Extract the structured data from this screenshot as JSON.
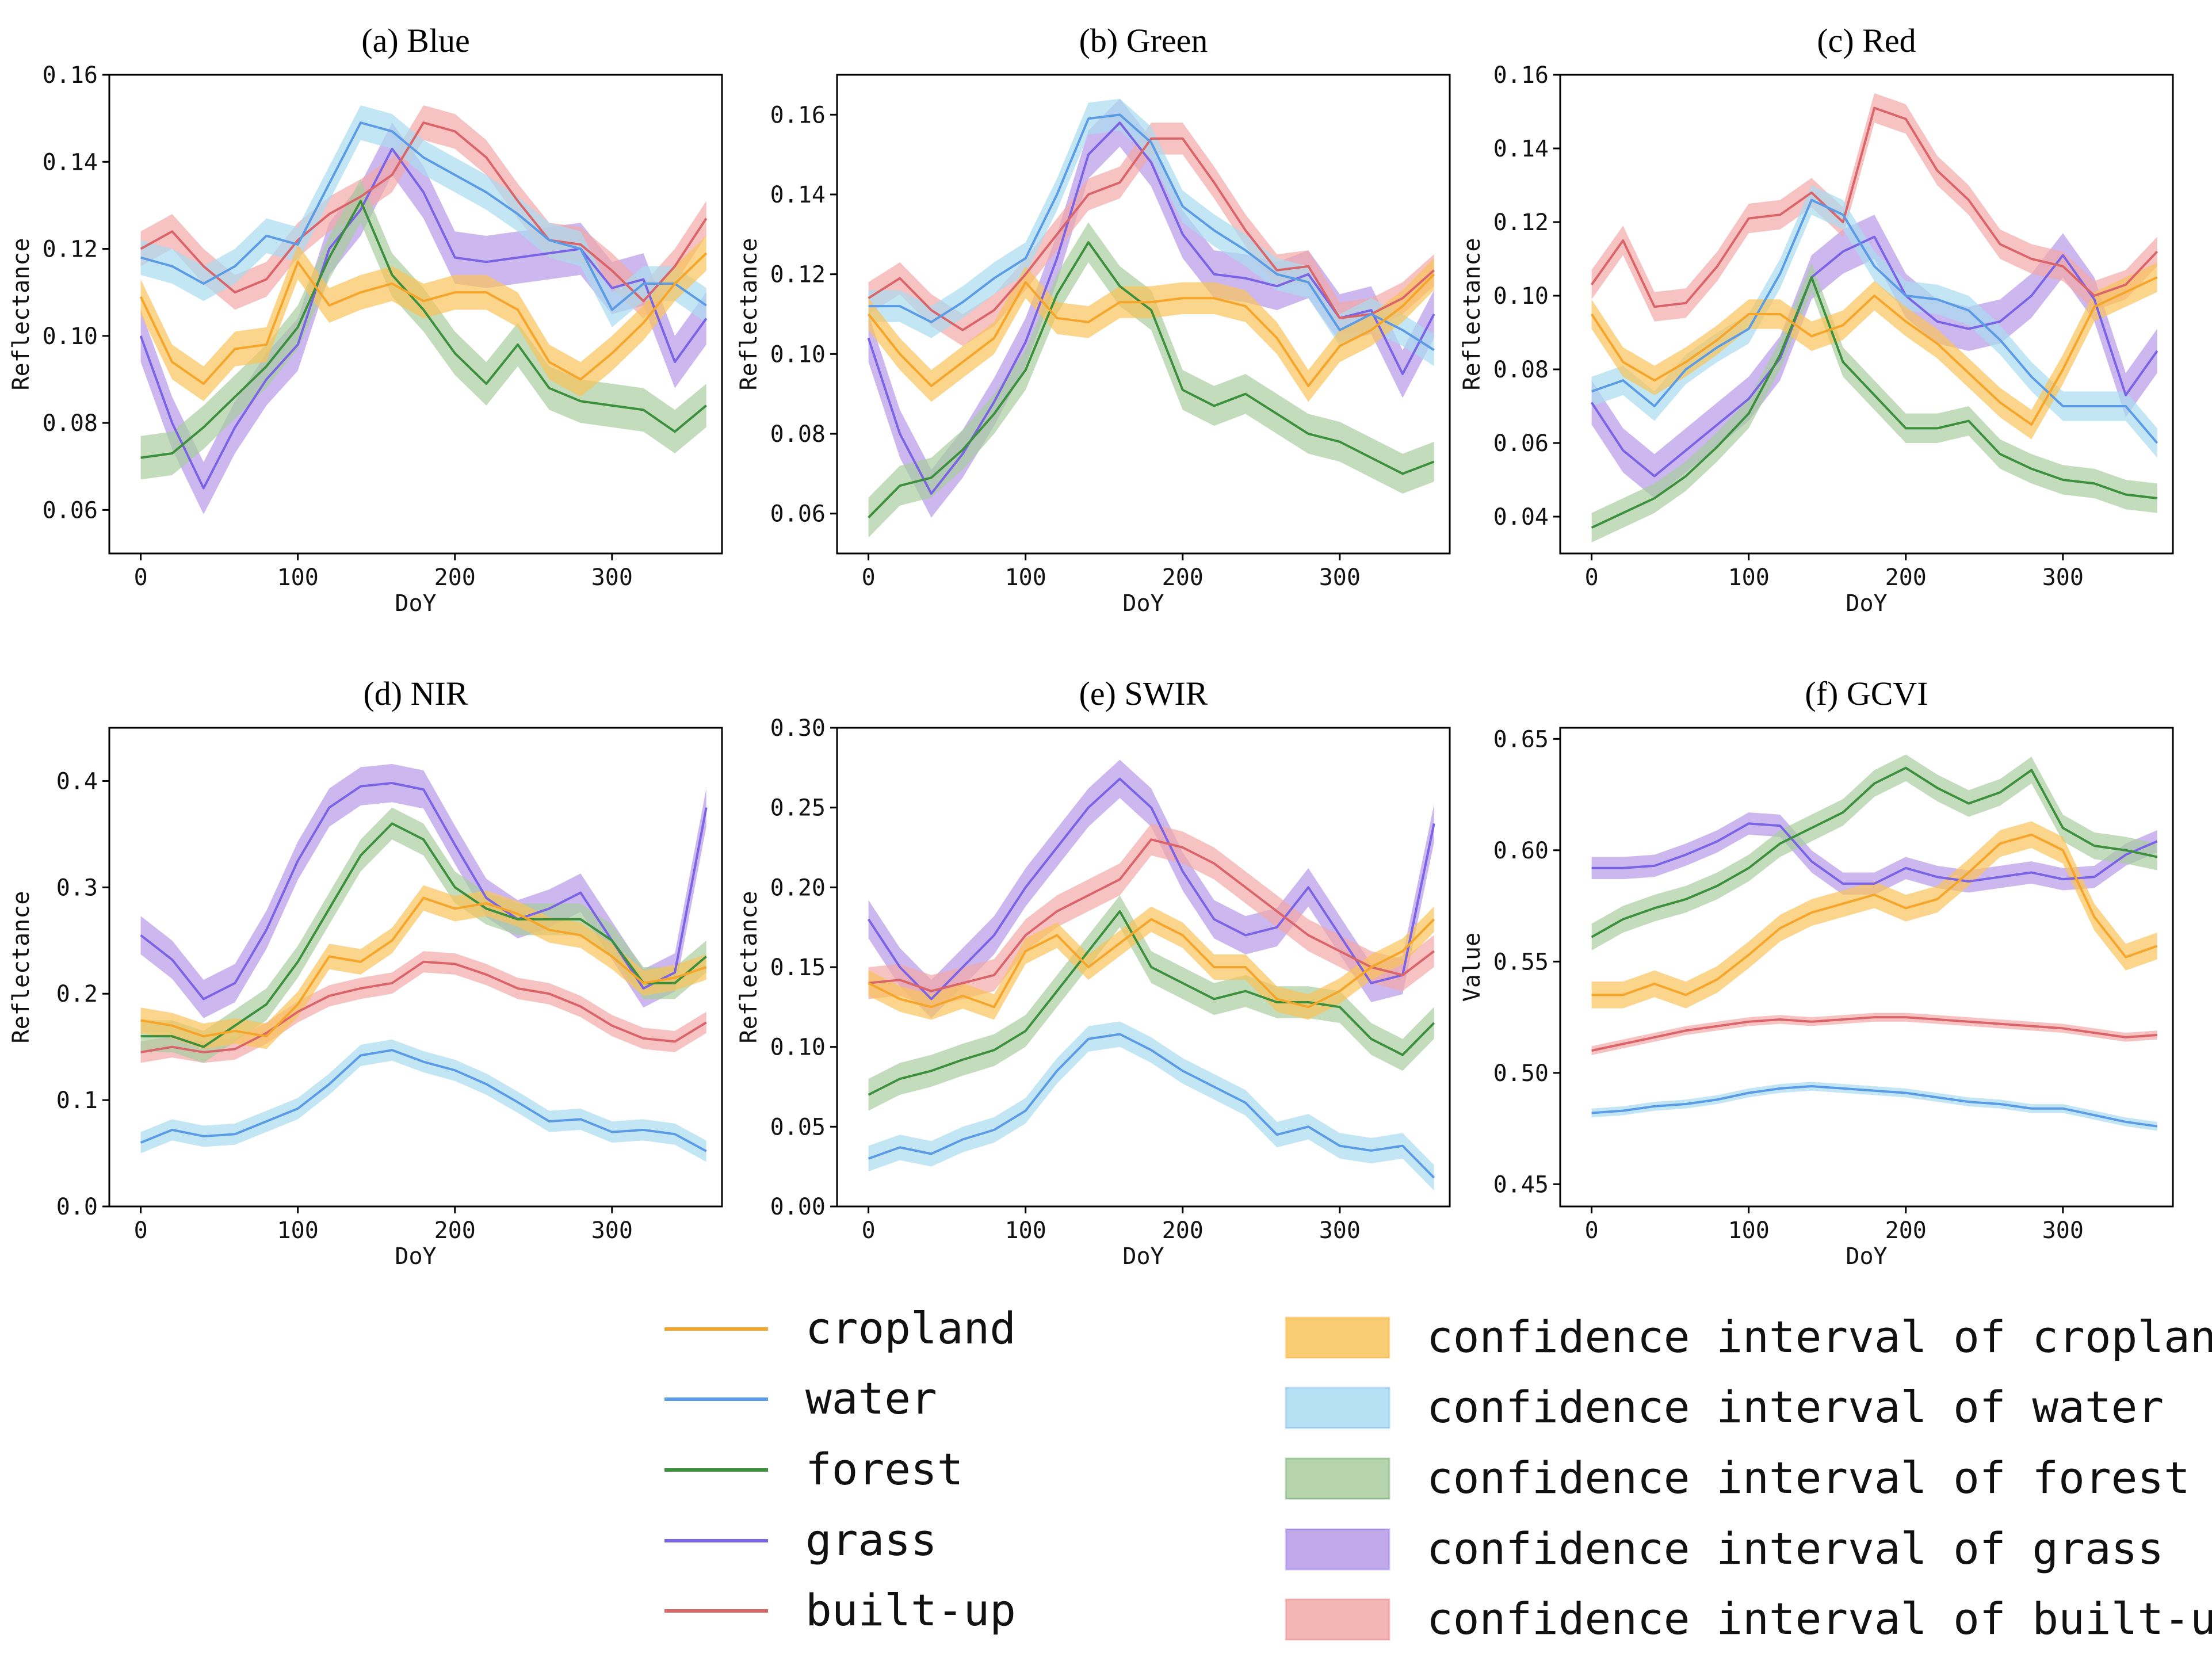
{
  "colors": {
    "cropland": "#F4A52A",
    "water": "#5B9BE6",
    "forest": "#3C8F3C",
    "grass": "#7B63E6",
    "built-up": "#D9656A",
    "band_cropland": "#F9C35A",
    "band_water": "#A9DBF1",
    "band_forest": "#A8CDA0",
    "band_grass": "#B69AE8",
    "band_built-up": "#F2A8A8"
  },
  "legend": {
    "lines": [
      "cropland",
      "water",
      "forest",
      "grass",
      "built-up"
    ],
    "bands": [
      "confidence interval of cropland",
      "confidence interval of water",
      "confidence interval of forest",
      "confidence interval of grass",
      "confidence interval of built-up"
    ]
  },
  "chart_data": [
    {
      "type": "line",
      "title": "(a) Blue",
      "xlabel": "DoY",
      "ylabel": "Reflectance",
      "xlim": [
        -20,
        370
      ],
      "ylim": [
        0.05,
        0.16
      ],
      "xticks": [
        0,
        100,
        200,
        300
      ],
      "xtick_labels": [
        "0",
        "100",
        "200",
        "300"
      ],
      "yticks": [
        0.06,
        0.08,
        0.1,
        0.12,
        0.14,
        0.16
      ],
      "ytick_labels": [
        "0.06",
        "0.08",
        "0.10",
        "0.12",
        "0.14",
        "0.16"
      ],
      "x": [
        0,
        20,
        40,
        60,
        80,
        100,
        120,
        140,
        160,
        180,
        200,
        220,
        240,
        260,
        280,
        300,
        320,
        340,
        360
      ],
      "series": [
        {
          "name": "cropland",
          "band": 0.004,
          "values": [
            0.109,
            0.094,
            0.089,
            0.097,
            0.098,
            0.117,
            0.107,
            0.11,
            0.112,
            0.108,
            0.11,
            0.11,
            0.106,
            0.094,
            0.09,
            0.096,
            0.103,
            0.112,
            0.119
          ]
        },
        {
          "name": "water",
          "band": 0.004,
          "values": [
            0.118,
            0.116,
            0.112,
            0.116,
            0.123,
            0.121,
            0.135,
            0.149,
            0.147,
            0.141,
            0.137,
            0.133,
            0.128,
            0.122,
            0.12,
            0.106,
            0.112,
            0.112,
            0.107
          ]
        },
        {
          "name": "forest",
          "band": 0.005,
          "values": [
            0.072,
            0.073,
            0.079,
            0.086,
            0.093,
            0.102,
            0.118,
            0.131,
            0.114,
            0.106,
            0.096,
            0.089,
            0.098,
            0.088,
            0.085,
            0.084,
            0.083,
            0.078,
            0.084
          ]
        },
        {
          "name": "grass",
          "band": 0.006,
          "values": [
            0.1,
            0.08,
            0.065,
            0.079,
            0.09,
            0.098,
            0.12,
            0.129,
            0.143,
            0.133,
            0.118,
            0.117,
            0.118,
            0.119,
            0.12,
            0.111,
            0.113,
            0.094,
            0.104
          ]
        },
        {
          "name": "built-up",
          "band": 0.004,
          "values": [
            0.12,
            0.124,
            0.116,
            0.11,
            0.113,
            0.122,
            0.128,
            0.132,
            0.137,
            0.149,
            0.147,
            0.141,
            0.131,
            0.122,
            0.121,
            0.115,
            0.108,
            0.116,
            0.127
          ]
        }
      ]
    },
    {
      "type": "line",
      "title": "(b) Green",
      "xlabel": "DoY",
      "ylabel": "Reflectance",
      "xlim": [
        -20,
        370
      ],
      "ylim": [
        0.05,
        0.17
      ],
      "xticks": [
        0,
        100,
        200,
        300
      ],
      "xtick_labels": [
        "0",
        "100",
        "200",
        "300"
      ],
      "yticks": [
        0.06,
        0.08,
        0.1,
        0.12,
        0.14,
        0.16
      ],
      "ytick_labels": [
        "0.06",
        "0.08",
        "0.10",
        "0.12",
        "0.14",
        "0.16"
      ],
      "x": [
        0,
        20,
        40,
        60,
        80,
        100,
        120,
        140,
        160,
        180,
        200,
        220,
        240,
        260,
        280,
        300,
        320,
        340,
        360
      ],
      "series": [
        {
          "name": "cropland",
          "band": 0.004,
          "values": [
            0.11,
            0.1,
            0.092,
            0.098,
            0.104,
            0.118,
            0.109,
            0.108,
            0.113,
            0.113,
            0.114,
            0.114,
            0.112,
            0.104,
            0.092,
            0.102,
            0.106,
            0.112,
            0.12
          ]
        },
        {
          "name": "water",
          "band": 0.004,
          "values": [
            0.112,
            0.112,
            0.108,
            0.113,
            0.119,
            0.124,
            0.14,
            0.159,
            0.16,
            0.153,
            0.137,
            0.131,
            0.126,
            0.12,
            0.118,
            0.106,
            0.11,
            0.106,
            0.101
          ]
        },
        {
          "name": "forest",
          "band": 0.005,
          "values": [
            0.059,
            0.067,
            0.069,
            0.076,
            0.085,
            0.096,
            0.115,
            0.128,
            0.117,
            0.111,
            0.091,
            0.087,
            0.09,
            0.085,
            0.08,
            0.078,
            0.074,
            0.07,
            0.073
          ]
        },
        {
          "name": "grass",
          "band": 0.006,
          "values": [
            0.104,
            0.08,
            0.065,
            0.075,
            0.088,
            0.103,
            0.124,
            0.15,
            0.158,
            0.148,
            0.13,
            0.12,
            0.119,
            0.117,
            0.12,
            0.109,
            0.111,
            0.095,
            0.11
          ]
        },
        {
          "name": "built-up",
          "band": 0.004,
          "values": [
            0.114,
            0.119,
            0.111,
            0.106,
            0.111,
            0.12,
            0.13,
            0.14,
            0.143,
            0.154,
            0.154,
            0.143,
            0.131,
            0.121,
            0.122,
            0.109,
            0.11,
            0.114,
            0.121
          ]
        }
      ]
    },
    {
      "type": "line",
      "title": "(c) Red",
      "xlabel": "DoY",
      "ylabel": "Reflectance",
      "xlim": [
        -20,
        370
      ],
      "ylim": [
        0.03,
        0.16
      ],
      "xticks": [
        0,
        100,
        200,
        300
      ],
      "xtick_labels": [
        "0",
        "100",
        "200",
        "300"
      ],
      "yticks": [
        0.04,
        0.06,
        0.08,
        0.1,
        0.12,
        0.14,
        0.16
      ],
      "ytick_labels": [
        "0.04",
        "0.06",
        "0.08",
        "0.10",
        "0.12",
        "0.14",
        "0.16"
      ],
      "x": [
        0,
        20,
        40,
        60,
        80,
        100,
        120,
        140,
        160,
        180,
        200,
        220,
        240,
        260,
        280,
        300,
        320,
        340,
        360
      ],
      "series": [
        {
          "name": "cropland",
          "band": 0.004,
          "values": [
            0.095,
            0.082,
            0.077,
            0.082,
            0.088,
            0.095,
            0.095,
            0.089,
            0.092,
            0.1,
            0.093,
            0.087,
            0.079,
            0.071,
            0.065,
            0.08,
            0.097,
            0.101,
            0.105
          ]
        },
        {
          "name": "water",
          "band": 0.004,
          "values": [
            0.074,
            0.077,
            0.07,
            0.08,
            0.086,
            0.091,
            0.106,
            0.126,
            0.122,
            0.108,
            0.1,
            0.099,
            0.096,
            0.088,
            0.078,
            0.07,
            0.07,
            0.07,
            0.06
          ]
        },
        {
          "name": "forest",
          "band": 0.004,
          "values": [
            0.037,
            0.041,
            0.045,
            0.051,
            0.059,
            0.068,
            0.084,
            0.105,
            0.082,
            0.073,
            0.064,
            0.064,
            0.066,
            0.057,
            0.053,
            0.05,
            0.049,
            0.046,
            0.045
          ]
        },
        {
          "name": "grass",
          "band": 0.006,
          "values": [
            0.071,
            0.058,
            0.051,
            0.058,
            0.065,
            0.072,
            0.083,
            0.105,
            0.112,
            0.116,
            0.1,
            0.093,
            0.091,
            0.093,
            0.1,
            0.111,
            0.099,
            0.073,
            0.085
          ]
        },
        {
          "name": "built-up",
          "band": 0.004,
          "values": [
            0.103,
            0.115,
            0.097,
            0.098,
            0.108,
            0.121,
            0.122,
            0.128,
            0.12,
            0.151,
            0.148,
            0.134,
            0.126,
            0.114,
            0.11,
            0.108,
            0.1,
            0.103,
            0.112
          ]
        }
      ]
    },
    {
      "type": "line",
      "title": "(d) NIR",
      "xlabel": "DoY",
      "ylabel": "Reflectance",
      "xlim": [
        -20,
        370
      ],
      "ylim": [
        0.0,
        0.45
      ],
      "xticks": [
        0,
        100,
        200,
        300
      ],
      "xtick_labels": [
        "0",
        "100",
        "200",
        "300"
      ],
      "yticks": [
        0.0,
        0.1,
        0.2,
        0.3,
        0.4
      ],
      "ytick_labels": [
        "0.0",
        "0.1",
        "0.2",
        "0.3",
        "0.4"
      ],
      "x": [
        0,
        20,
        40,
        60,
        80,
        100,
        120,
        140,
        160,
        180,
        200,
        220,
        240,
        260,
        280,
        300,
        320,
        340,
        360
      ],
      "series": [
        {
          "name": "cropland",
          "band": 0.012,
          "values": [
            0.175,
            0.17,
            0.16,
            0.165,
            0.16,
            0.19,
            0.235,
            0.23,
            0.25,
            0.29,
            0.28,
            0.285,
            0.275,
            0.26,
            0.255,
            0.235,
            0.21,
            0.215,
            0.225
          ]
        },
        {
          "name": "water",
          "band": 0.01,
          "values": [
            0.06,
            0.072,
            0.066,
            0.068,
            0.08,
            0.092,
            0.115,
            0.142,
            0.147,
            0.136,
            0.128,
            0.115,
            0.098,
            0.08,
            0.082,
            0.07,
            0.072,
            0.068,
            0.052
          ]
        },
        {
          "name": "forest",
          "band": 0.015,
          "values": [
            0.16,
            0.16,
            0.15,
            0.17,
            0.19,
            0.23,
            0.28,
            0.33,
            0.36,
            0.345,
            0.3,
            0.28,
            0.27,
            0.27,
            0.27,
            0.25,
            0.21,
            0.21,
            0.235
          ]
        },
        {
          "name": "grass",
          "band": 0.018,
          "values": [
            0.255,
            0.232,
            0.195,
            0.21,
            0.26,
            0.325,
            0.375,
            0.395,
            0.398,
            0.392,
            0.34,
            0.29,
            0.27,
            0.28,
            0.295,
            0.25,
            0.205,
            0.22,
            0.375
          ]
        },
        {
          "name": "built-up",
          "band": 0.01,
          "values": [
            0.145,
            0.15,
            0.145,
            0.148,
            0.163,
            0.183,
            0.198,
            0.205,
            0.21,
            0.23,
            0.228,
            0.218,
            0.205,
            0.2,
            0.188,
            0.17,
            0.158,
            0.155,
            0.173
          ]
        }
      ]
    },
    {
      "type": "line",
      "title": "(e) SWIR",
      "xlabel": "DoY",
      "ylabel": "Reflectance",
      "xlim": [
        -20,
        370
      ],
      "ylim": [
        0.0,
        0.3
      ],
      "xticks": [
        0,
        100,
        200,
        300
      ],
      "xtick_labels": [
        "0",
        "100",
        "200",
        "300"
      ],
      "yticks": [
        0.0,
        0.05,
        0.1,
        0.15,
        0.2,
        0.25,
        0.3
      ],
      "ytick_labels": [
        "0.00",
        "0.05",
        "0.10",
        "0.15",
        "0.20",
        "0.25",
        "0.30"
      ],
      "x": [
        0,
        20,
        40,
        60,
        80,
        100,
        120,
        140,
        160,
        180,
        200,
        220,
        240,
        260,
        280,
        300,
        320,
        340,
        360
      ],
      "series": [
        {
          "name": "cropland",
          "band": 0.008,
          "values": [
            0.14,
            0.13,
            0.125,
            0.132,
            0.125,
            0.16,
            0.17,
            0.15,
            0.165,
            0.18,
            0.17,
            0.15,
            0.15,
            0.13,
            0.125,
            0.135,
            0.15,
            0.16,
            0.18
          ]
        },
        {
          "name": "water",
          "band": 0.008,
          "values": [
            0.03,
            0.037,
            0.033,
            0.042,
            0.048,
            0.06,
            0.085,
            0.105,
            0.108,
            0.098,
            0.085,
            0.075,
            0.065,
            0.045,
            0.05,
            0.038,
            0.035,
            0.038,
            0.018
          ]
        },
        {
          "name": "forest",
          "band": 0.01,
          "values": [
            0.07,
            0.08,
            0.085,
            0.092,
            0.098,
            0.11,
            0.135,
            0.16,
            0.185,
            0.15,
            0.14,
            0.13,
            0.135,
            0.128,
            0.128,
            0.125,
            0.105,
            0.095,
            0.115
          ]
        },
        {
          "name": "grass",
          "band": 0.012,
          "values": [
            0.18,
            0.15,
            0.13,
            0.15,
            0.17,
            0.2,
            0.225,
            0.25,
            0.268,
            0.25,
            0.21,
            0.18,
            0.17,
            0.175,
            0.2,
            0.17,
            0.14,
            0.145,
            0.24
          ]
        },
        {
          "name": "built-up",
          "band": 0.01,
          "values": [
            0.14,
            0.142,
            0.135,
            0.14,
            0.145,
            0.17,
            0.185,
            0.195,
            0.205,
            0.23,
            0.225,
            0.215,
            0.2,
            0.185,
            0.17,
            0.16,
            0.15,
            0.145,
            0.16
          ]
        }
      ]
    },
    {
      "type": "line",
      "title": "(f) GCVI",
      "xlabel": "DoY",
      "ylabel": "Value",
      "xlim": [
        -20,
        370
      ],
      "ylim": [
        0.44,
        0.655
      ],
      "xticks": [
        0,
        100,
        200,
        300
      ],
      "xtick_labels": [
        "0",
        "100",
        "200",
        "300"
      ],
      "yticks": [
        0.45,
        0.5,
        0.55,
        0.6,
        0.65
      ],
      "ytick_labels": [
        "0.45",
        "0.50",
        "0.55",
        "0.60",
        "0.65"
      ],
      "x": [
        0,
        20,
        40,
        60,
        80,
        100,
        120,
        140,
        160,
        180,
        200,
        220,
        240,
        260,
        280,
        300,
        320,
        340,
        360
      ],
      "series": [
        {
          "name": "cropland",
          "band": 0.006,
          "values": [
            0.535,
            0.535,
            0.54,
            0.535,
            0.542,
            0.553,
            0.565,
            0.572,
            0.576,
            0.58,
            0.574,
            0.578,
            0.59,
            0.603,
            0.607,
            0.6,
            0.57,
            0.552,
            0.557
          ]
        },
        {
          "name": "water",
          "band": 0.002,
          "values": [
            0.482,
            0.483,
            0.485,
            0.486,
            0.488,
            0.491,
            0.493,
            0.494,
            0.493,
            0.492,
            0.491,
            0.489,
            0.487,
            0.486,
            0.484,
            0.484,
            0.481,
            0.478,
            0.476
          ]
        },
        {
          "name": "forest",
          "band": 0.006,
          "values": [
            0.561,
            0.569,
            0.574,
            0.578,
            0.584,
            0.592,
            0.603,
            0.61,
            0.617,
            0.63,
            0.637,
            0.628,
            0.621,
            0.626,
            0.636,
            0.61,
            0.602,
            0.6,
            0.597
          ]
        },
        {
          "name": "grass",
          "band": 0.005,
          "values": [
            0.592,
            0.592,
            0.593,
            0.598,
            0.604,
            0.612,
            0.611,
            0.595,
            0.585,
            0.585,
            0.592,
            0.588,
            0.586,
            0.588,
            0.59,
            0.587,
            0.588,
            0.598,
            0.604
          ]
        },
        {
          "name": "built-up",
          "band": 0.002,
          "values": [
            0.51,
            0.513,
            0.516,
            0.519,
            0.521,
            0.523,
            0.524,
            0.523,
            0.524,
            0.525,
            0.525,
            0.524,
            0.523,
            0.522,
            0.521,
            0.52,
            0.518,
            0.516,
            0.517
          ]
        }
      ]
    }
  ]
}
